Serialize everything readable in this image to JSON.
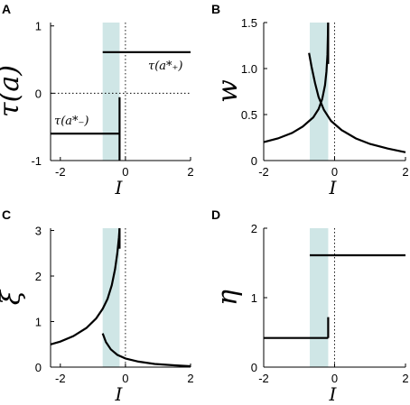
{
  "colors": {
    "band": "#c7e2e2",
    "line": "#000000",
    "background": "#ffffff"
  },
  "chart_data": [
    {
      "panel": "A",
      "type": "line",
      "xlabel": "I",
      "ylabel": "τ(a)",
      "xlim": [
        -2.3,
        2
      ],
      "ylim": [
        -1,
        1.05
      ],
      "xticks": [
        "-2",
        "0",
        "2"
      ],
      "yticks": [
        "-1",
        "0",
        "1"
      ],
      "xtick_values": [
        -2,
        0,
        2
      ],
      "ytick_values": [
        -1,
        0,
        1
      ],
      "band": [
        -0.7,
        -0.18
      ],
      "annotations": [
        "τ(a*₊)",
        "τ(a*₋)"
      ],
      "series": [
        {
          "points": [
            [
              -2.3,
              -0.6
            ],
            [
              -0.18,
              -0.6
            ]
          ]
        },
        {
          "points": [
            [
              -0.7,
              0.61
            ],
            [
              2,
              0.61
            ]
          ]
        },
        {
          "points": [
            [
              -0.18,
              -1.0
            ],
            [
              -0.18,
              -0.06
            ]
          ]
        }
      ]
    },
    {
      "panel": "B",
      "type": "line",
      "xlabel": "I",
      "ylabel": "w",
      "xlim": [
        -2,
        2
      ],
      "ylim": [
        0,
        1.5
      ],
      "xticks": [
        "-2",
        "0",
        "2"
      ],
      "yticks": [
        "0",
        "0.5",
        "1.0",
        "1.5"
      ],
      "xtick_values": [
        -2,
        0,
        2
      ],
      "ytick_values": [
        0,
        0.5,
        1.0,
        1.5
      ],
      "band": [
        -0.7,
        -0.18
      ],
      "series": [
        {
          "points": [
            [
              -2,
              0.2
            ],
            [
              -1.6,
              0.24
            ],
            [
              -1.2,
              0.3
            ],
            [
              -0.9,
              0.37
            ],
            [
              -0.6,
              0.47
            ],
            [
              -0.45,
              0.56
            ],
            [
              -0.35,
              0.67
            ],
            [
              -0.27,
              0.82
            ],
            [
              -0.23,
              0.97
            ],
            [
              -0.2,
              1.15
            ],
            [
              -0.18,
              1.5
            ]
          ]
        },
        {
          "points": [
            [
              -0.72,
              1.17
            ],
            [
              -0.65,
              1.02
            ],
            [
              -0.55,
              0.84
            ],
            [
              -0.45,
              0.69
            ],
            [
              -0.3,
              0.55
            ],
            [
              -0.1,
              0.43
            ],
            [
              0.2,
              0.33
            ],
            [
              0.6,
              0.24
            ],
            [
              1.0,
              0.18
            ],
            [
              1.5,
              0.13
            ],
            [
              2.0,
              0.09
            ]
          ]
        },
        {
          "points": [
            [
              -0.18,
              1.05
            ],
            [
              -0.18,
              1.5
            ]
          ]
        }
      ]
    },
    {
      "panel": "C",
      "type": "line",
      "xlabel": "I",
      "ylabel": "ξ",
      "xlim": [
        -2.3,
        2
      ],
      "ylim": [
        0,
        3.05
      ],
      "xticks": [
        "-2",
        "0",
        "2"
      ],
      "yticks": [
        "0",
        "1",
        "2",
        "3"
      ],
      "xtick_values": [
        -2,
        0,
        2
      ],
      "ytick_values": [
        0,
        1,
        2,
        3
      ],
      "band": [
        -0.7,
        -0.18
      ],
      "series": [
        {
          "points": [
            [
              -2.3,
              0.5
            ],
            [
              -2,
              0.56
            ],
            [
              -1.6,
              0.68
            ],
            [
              -1.2,
              0.86
            ],
            [
              -0.9,
              1.07
            ],
            [
              -0.7,
              1.28
            ],
            [
              -0.55,
              1.5
            ],
            [
              -0.42,
              1.8
            ],
            [
              -0.32,
              2.15
            ],
            [
              -0.25,
              2.5
            ],
            [
              -0.2,
              2.85
            ],
            [
              -0.18,
              3.05
            ]
          ]
        },
        {
          "points": [
            [
              -0.7,
              0.74
            ],
            [
              -0.6,
              0.55
            ],
            [
              -0.45,
              0.39
            ],
            [
              -0.25,
              0.27
            ],
            [
              0.0,
              0.19
            ],
            [
              0.4,
              0.12
            ],
            [
              0.9,
              0.07
            ],
            [
              1.5,
              0.04
            ],
            [
              2.0,
              0.02
            ]
          ]
        },
        {
          "points": [
            [
              -0.18,
              2.6
            ],
            [
              -0.18,
              3.05
            ]
          ]
        }
      ]
    },
    {
      "panel": "D",
      "type": "line",
      "xlabel": "I",
      "ylabel": "η",
      "xlim": [
        -2,
        2
      ],
      "ylim": [
        0,
        2
      ],
      "xticks": [
        "-2",
        "0",
        "2"
      ],
      "yticks": [
        "0",
        "1",
        "2"
      ],
      "xtick_values": [
        -2,
        0,
        2
      ],
      "ytick_values": [
        0,
        1,
        2
      ],
      "band": [
        -0.7,
        -0.18
      ],
      "series": [
        {
          "points": [
            [
              -2,
              0.42
            ],
            [
              -0.18,
              0.42
            ]
          ]
        },
        {
          "points": [
            [
              -0.7,
              1.61
            ],
            [
              2,
              1.61
            ]
          ]
        },
        {
          "points": [
            [
              -0.18,
              0.42
            ],
            [
              -0.18,
              0.72
            ]
          ]
        }
      ]
    }
  ]
}
